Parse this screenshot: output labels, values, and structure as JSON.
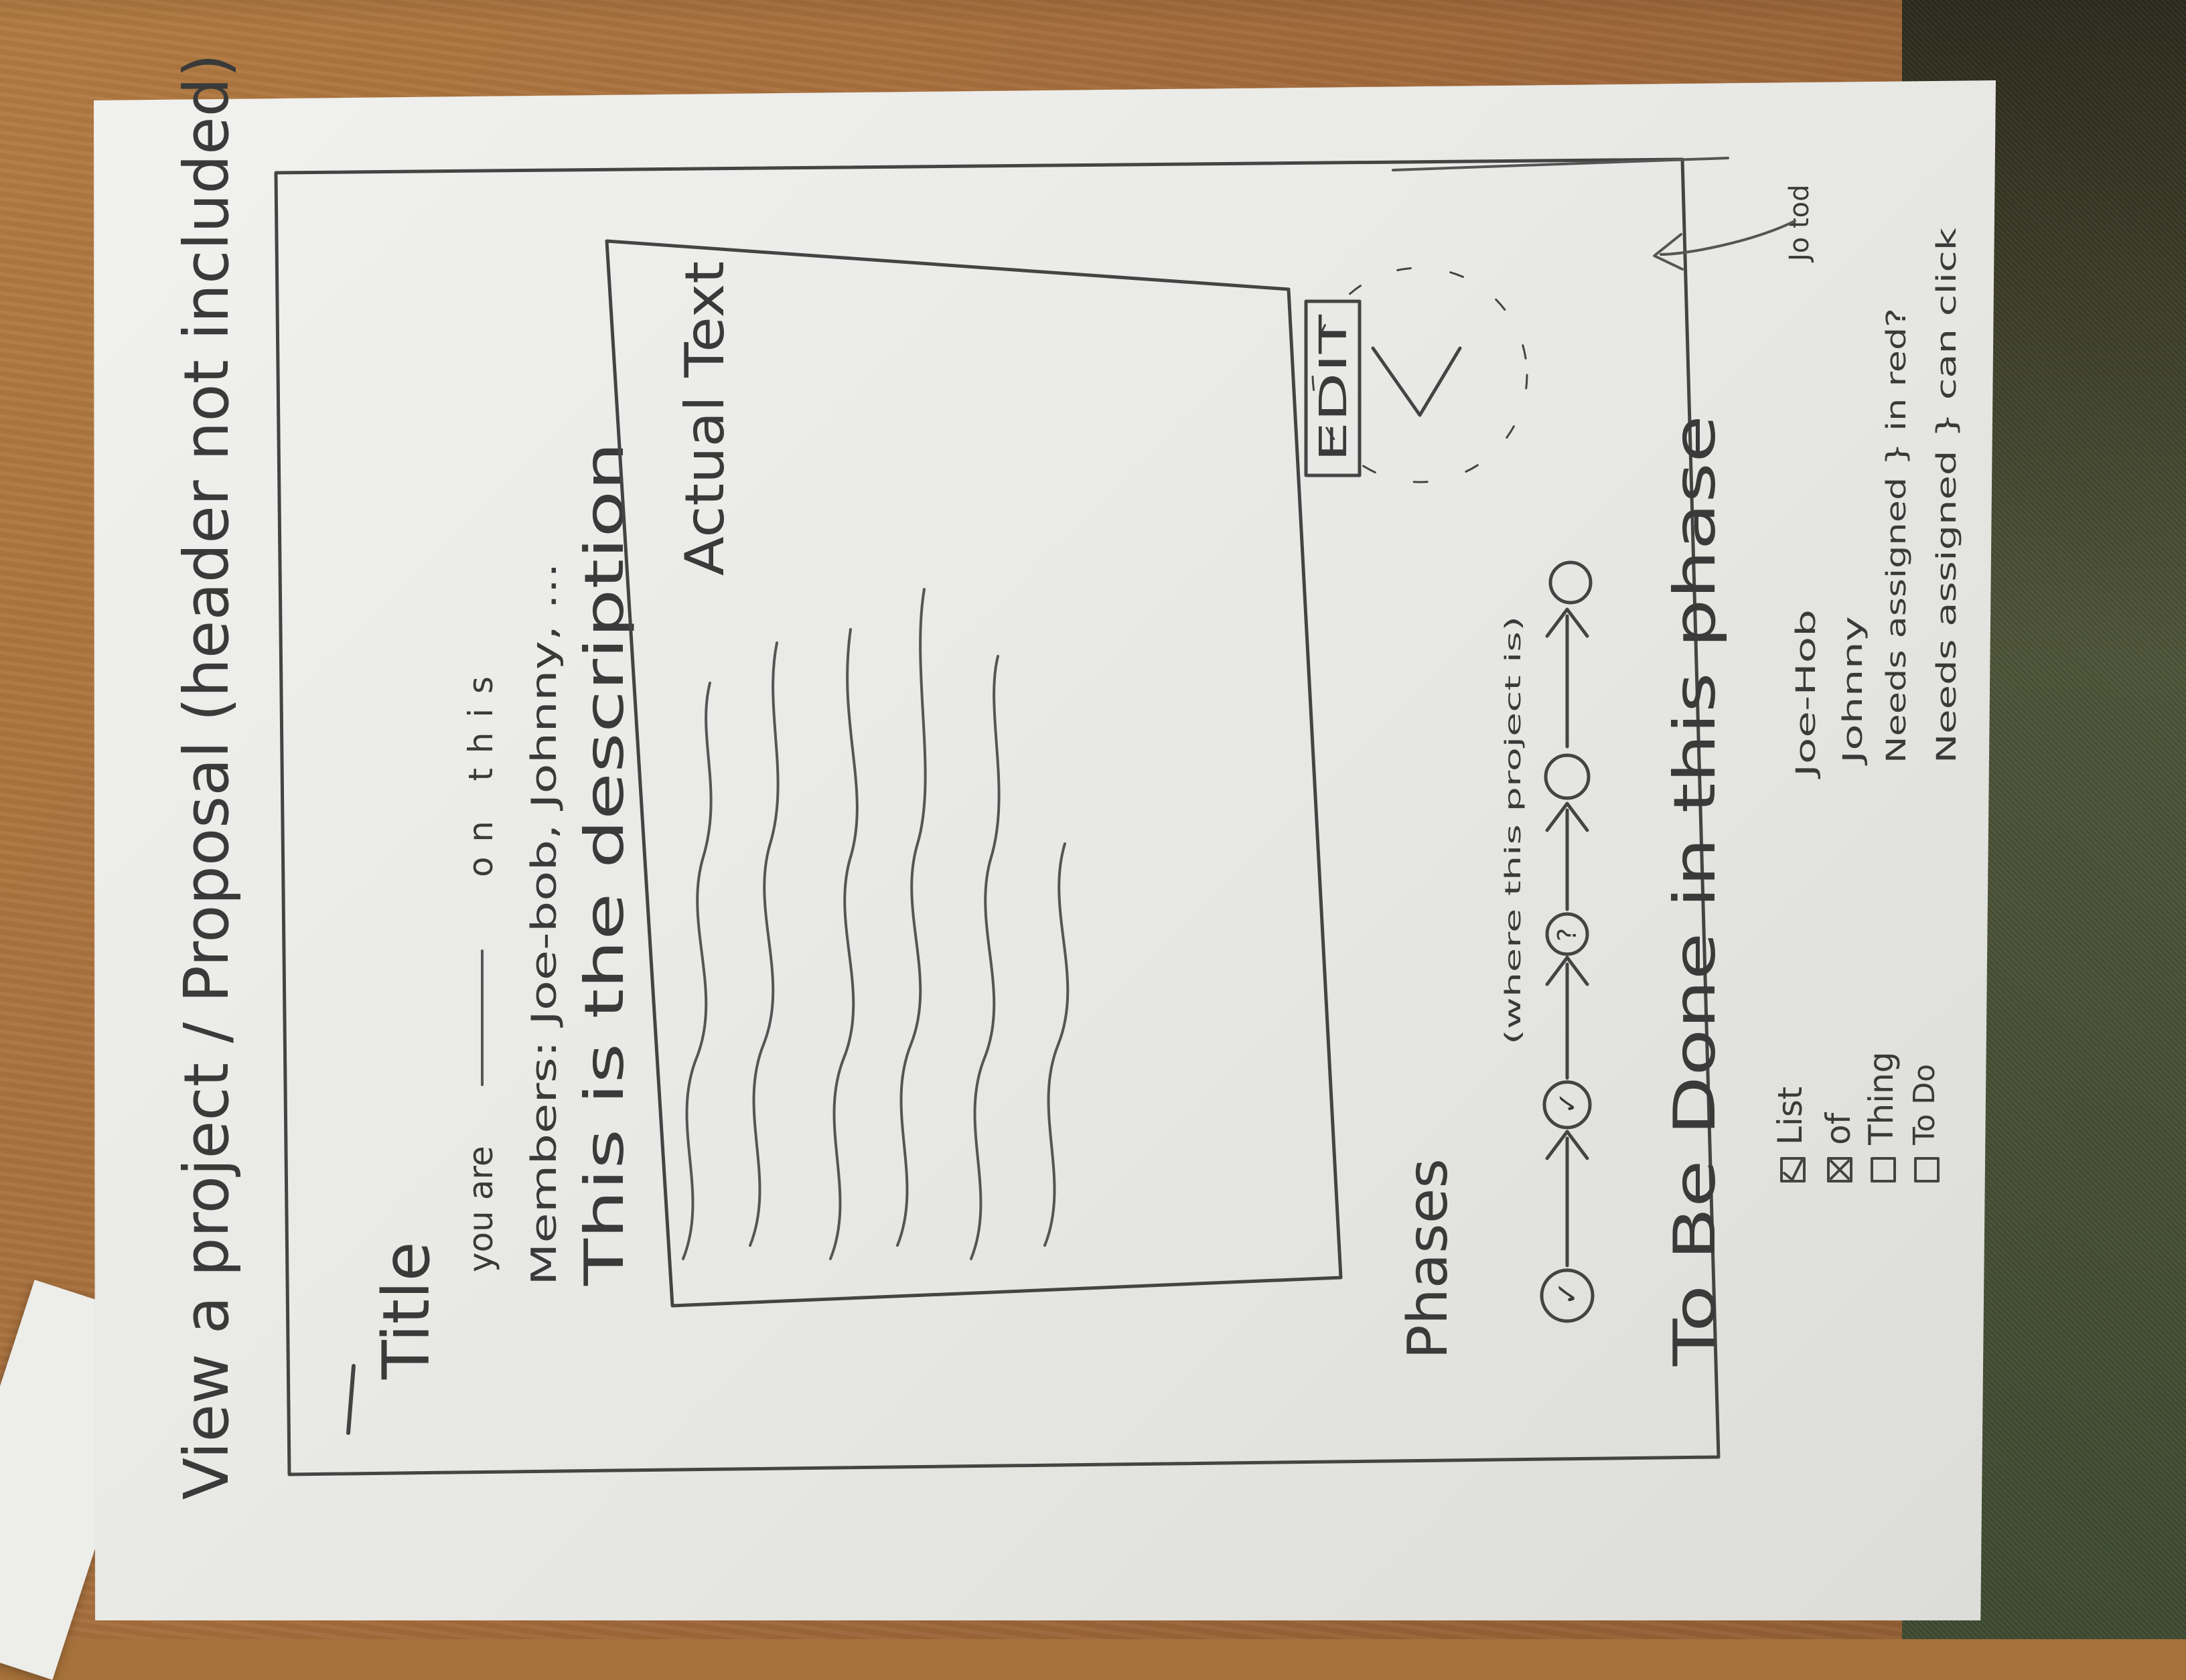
{
  "sketch": {
    "page_heading": "View a project / Proposal (header not included)",
    "title": "Title",
    "you_are_line": {
      "prefix": "you are",
      "suffix": "on this"
    },
    "members": "Members: Joe-bob, Johnny, ...",
    "description_line": "This is the description",
    "text_box_label": "Actual Text",
    "edit_button_label": "EDIT",
    "corner_note": "Jo tod",
    "phases": {
      "heading": "Phases",
      "note": "(where this project is)",
      "steps": [
        {
          "symbol": "✓",
          "state": "done"
        },
        {
          "symbol": "✓",
          "state": "done"
        },
        {
          "symbol": "?",
          "state": "current"
        },
        {
          "symbol": "",
          "state": "pending"
        },
        {
          "symbol": "",
          "state": "pending"
        }
      ]
    },
    "todo": {
      "heading": "To Be Done in this phase",
      "items": [
        {
          "label": "List",
          "checked": true
        },
        {
          "label": "of",
          "checked": true
        },
        {
          "label": "Thing",
          "checked": false
        },
        {
          "label": "To Do",
          "checked": false
        }
      ],
      "assignees": [
        "Joe-Hob",
        "Johnny",
        "Needs assigned } in red?",
        "Needs assigned } can click"
      ]
    }
  }
}
